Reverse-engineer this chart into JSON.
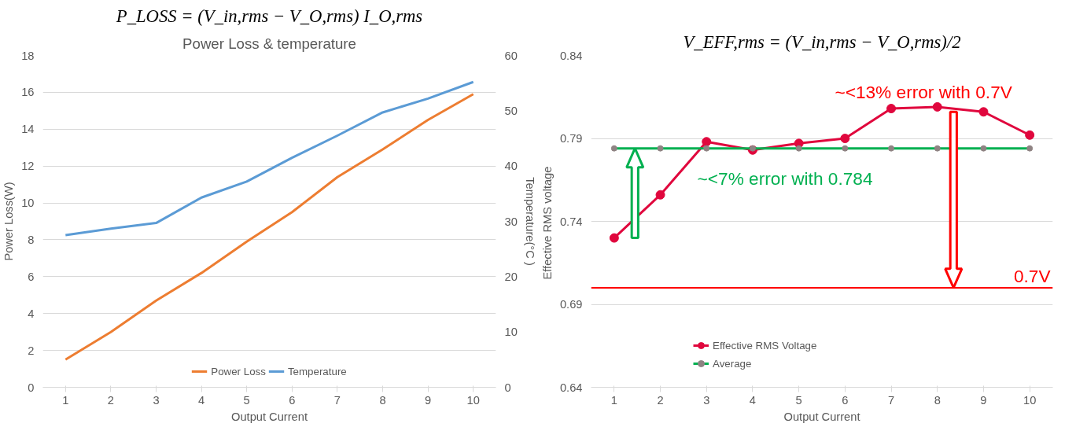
{
  "chart_data": [
    {
      "type": "line",
      "title": "P_LOSS = (V_in,rms − V_O,rms) I_O,rms",
      "subtitle": "Power Loss & temperature",
      "xlabel": "Output Current",
      "ylabel": "Power Loss(W)",
      "y2label": "Temperature(°C )",
      "categories": [
        "1",
        "2",
        "3",
        "4",
        "5",
        "6",
        "7",
        "8",
        "9",
        "10"
      ],
      "series": [
        {
          "name": "Power Loss",
          "color": "#ed7d31",
          "values": [
            1.5,
            3.0,
            4.7,
            6.2,
            7.9,
            9.5,
            11.4,
            12.9,
            14.5,
            15.9
          ]
        },
        {
          "name": "Temperature",
          "color": "#5b9bd5",
          "axis": "y2",
          "values": [
            27.5,
            28.7,
            29.7,
            34.3,
            37.2,
            41.5,
            45.5,
            49.7,
            52.2,
            55.2
          ]
        }
      ],
      "ylim": [
        0,
        18
      ],
      "yticks": [
        0,
        2,
        4,
        6,
        8,
        10,
        12,
        14,
        16,
        18
      ],
      "y2lim": [
        0,
        60
      ],
      "y2ticks": [
        0,
        10,
        20,
        30,
        40,
        50,
        60
      ],
      "grid": "y",
      "legend": "bottom"
    },
    {
      "type": "line",
      "title": "V_EFF,rms = (V_in,rms − V_O,rms)/2",
      "xlabel": "Output Current",
      "ylabel": "Effective RMS  voltage",
      "categories": [
        "1",
        "2",
        "3",
        "4",
        "5",
        "6",
        "7",
        "8",
        "9",
        "10"
      ],
      "series": [
        {
          "name": "Effective RMS Voltage",
          "color": "#e0073d",
          "values": [
            0.73,
            0.756,
            0.788,
            0.783,
            0.787,
            0.79,
            0.808,
            0.809,
            0.806,
            0.792
          ]
        },
        {
          "name": "Average",
          "color": "#00b050",
          "colors": [
            "#8f8383",
            "#8f8383",
            "#8f8383",
            "#8f8383",
            "#8f8383",
            "#8f8383",
            "#8f8383",
            "#8f8383",
            "#8f8383",
            "#8f8383"
          ],
          "values": [
            0.784,
            0.784,
            0.784,
            0.784,
            0.784,
            0.784,
            0.784,
            0.784,
            0.784,
            0.784
          ]
        }
      ],
      "ylim": [
        0.64,
        0.84
      ],
      "yticks": [
        0.64,
        0.69,
        0.74,
        0.79,
        0.84
      ],
      "ref_lines": [
        {
          "axis": "y",
          "value": 0.7,
          "label": "0.7V",
          "color": "#ff0000"
        }
      ],
      "annotations": [
        "~<13% error with 0.7V",
        "~<7% error with 0.784"
      ],
      "grid": "y",
      "legend": "bottom left",
      "marker": "circle"
    }
  ]
}
